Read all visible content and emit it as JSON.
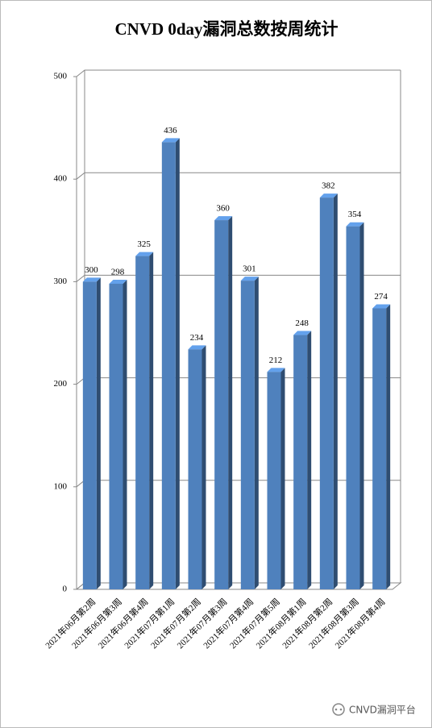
{
  "chart_data": {
    "type": "bar",
    "title": "CNVD 0day漏洞总数按周统计",
    "categories": [
      "2021年06月第2周",
      "2021年06月第3周",
      "2021年06月第4周",
      "2021年07月第1周",
      "2021年07月第2周",
      "2021年07月第3周",
      "2021年07月第4周",
      "2021年07月第5周",
      "2021年08月第1周",
      "2021年08月第2周",
      "2021年08月第3周",
      "2021年08月第4周"
    ],
    "values": [
      300,
      298,
      325,
      436,
      234,
      360,
      301,
      212,
      248,
      382,
      354,
      274
    ],
    "color": "#4f81bd",
    "ylim": [
      0,
      500
    ],
    "yticks": [
      0,
      100,
      200,
      300,
      400,
      500
    ],
    "grid": true
  },
  "watermark": "CNVD漏洞平台"
}
